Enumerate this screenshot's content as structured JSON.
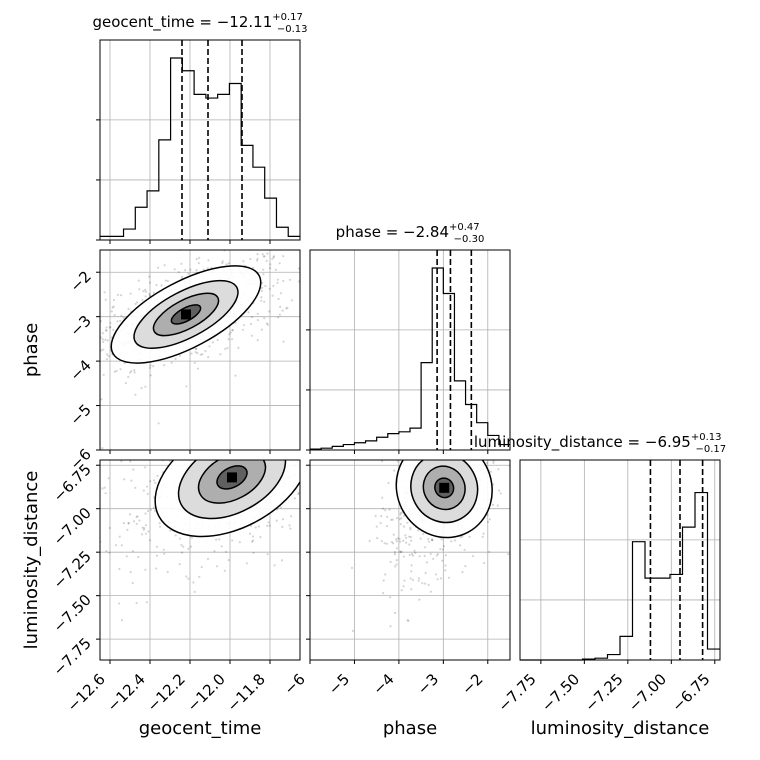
{
  "chart_data": {
    "type": "corner",
    "parameters": [
      {
        "name": "geocent_time",
        "label": "geocent_time",
        "range": [
          -12.65,
          -11.65
        ],
        "ticks": [
          -12.6,
          -12.4,
          -12.2,
          -12.0,
          -11.8
        ],
        "tick_labels": [
          "−12.6",
          "−12.4",
          "−12.2",
          "−12.0",
          "−11.8"
        ],
        "title": {
          "prefix": "geocent_time = −12.11",
          "sup": "+0.17",
          "sub": "−0.13"
        },
        "quantiles": [
          -12.24,
          -12.11,
          -11.94
        ],
        "hist_counts": [
          0.02,
          0.02,
          0.06,
          0.18,
          0.27,
          0.55,
          1.0,
          0.93,
          0.8,
          0.78,
          0.8,
          0.86,
          0.52,
          0.4,
          0.23,
          0.07,
          0.02
        ]
      },
      {
        "name": "phase",
        "label": "phase",
        "range": [
          -6.0,
          -1.5
        ],
        "ticks": [
          -6,
          -5,
          -4,
          -3,
          -2
        ],
        "tick_labels": [
          "−6",
          "−5",
          "−4",
          "−3",
          "−2"
        ],
        "title": {
          "prefix": "phase = −2.84",
          "sup": "+0.47",
          "sub": "−0.30"
        },
        "quantiles": [
          -3.14,
          -2.84,
          -2.37
        ],
        "hist_counts": [
          0.005,
          0.01,
          0.02,
          0.03,
          0.04,
          0.05,
          0.07,
          0.09,
          0.1,
          0.12,
          0.48,
          1.0,
          0.86,
          0.38,
          0.25,
          0.15,
          0.08,
          0.03
        ]
      },
      {
        "name": "luminosity_distance",
        "label": "luminosity_distance",
        "range": [
          -7.87,
          -6.72
        ],
        "ticks": [
          -7.75,
          -7.5,
          -7.25,
          -7.0,
          -6.75
        ],
        "tick_labels": [
          "−7.75",
          "−7.50",
          "−7.25",
          "−7.00",
          "−6.75"
        ],
        "title": {
          "prefix": "luminosity_distance = −6.95",
          "sup": "+0.13",
          "sub": "−0.17"
        },
        "quantiles": [
          -7.12,
          -6.95,
          -6.82
        ],
        "hist_counts": [
          0.0,
          0.0,
          0.0,
          0.0,
          0.0,
          0.005,
          0.01,
          0.03,
          0.13,
          0.65,
          0.45,
          0.45,
          0.47,
          0.73,
          0.92,
          0.06
        ]
      }
    ],
    "pairs": [
      {
        "x": "geocent_time",
        "y": "phase",
        "mode": {
          "x": -12.22,
          "y": -2.95
        }
      },
      {
        "x": "geocent_time",
        "y": "luminosity_distance",
        "mode": {
          "x": -11.99,
          "y": -6.82
        }
      },
      {
        "x": "phase",
        "y": "luminosity_distance",
        "mode": {
          "x": -2.98,
          "y": -6.88
        }
      }
    ],
    "grid": true
  }
}
